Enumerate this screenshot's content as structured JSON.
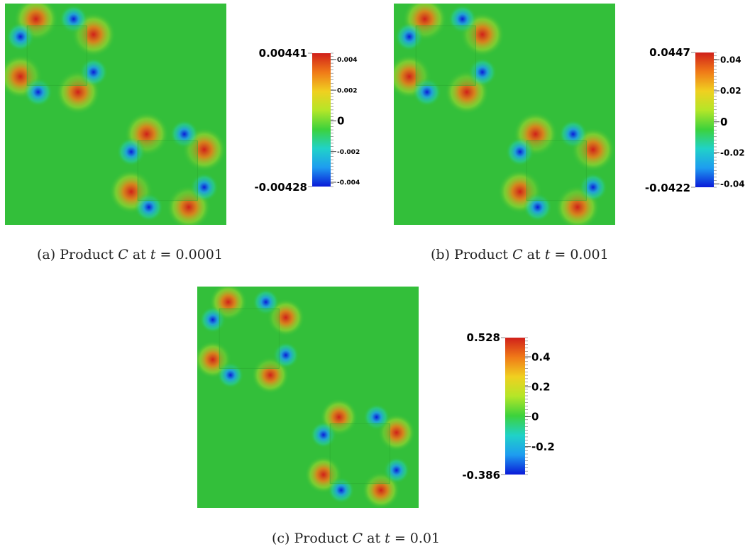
{
  "figure": {
    "panels": [
      {
        "id": "a",
        "caption": {
          "label": "(a)",
          "text": "Product",
          "var": "C",
          "at": "at",
          "tvar": "t",
          "value": "0.0001"
        },
        "colorbar": {
          "max_label": "0.00441",
          "min_label": "-0.00428",
          "range": [
            -0.00428,
            0.00441
          ],
          "ticks": [
            {
              "value": 0.004,
              "label": "0.004"
            },
            {
              "value": 0.002,
              "label": "0.002"
            },
            {
              "value": 0,
              "label": "0"
            },
            {
              "value": -0.002,
              "label": "-0.002"
            },
            {
              "value": -0.004,
              "label": "-0.004"
            }
          ]
        }
      },
      {
        "id": "b",
        "caption": {
          "label": "(b)",
          "text": "Product",
          "var": "C",
          "at": "at",
          "tvar": "t",
          "value": "0.001"
        },
        "colorbar": {
          "max_label": "0.0447",
          "min_label": "-0.0422",
          "range": [
            -0.0422,
            0.0447
          ],
          "ticks": [
            {
              "value": 0.04,
              "label": "0.04"
            },
            {
              "value": 0.02,
              "label": "0.02"
            },
            {
              "value": 0,
              "label": "0"
            },
            {
              "value": -0.02,
              "label": "-0.02"
            },
            {
              "value": -0.04,
              "label": "-0.04"
            }
          ]
        }
      },
      {
        "id": "c",
        "caption": {
          "label": "(c)",
          "text": "Product",
          "var": "C",
          "at": "at",
          "tvar": "t",
          "value": "0.01"
        },
        "colorbar": {
          "max_label": "0.528",
          "min_label": "-0.386",
          "range": [
            -0.386,
            0.528
          ],
          "ticks": [
            {
              "value": 0.4,
              "label": "0.4"
            },
            {
              "value": 0.2,
              "label": "0.2"
            },
            {
              "value": 0,
              "label": "0"
            },
            {
              "value": -0.2,
              "label": "-0.2"
            }
          ]
        }
      }
    ],
    "colors": {
      "background_field": "#33bf3a",
      "colormap": [
        "#0a1ad8",
        "#1e9cf0",
        "#20d2c8",
        "#3cd23c",
        "#b4e628",
        "#f0d020",
        "#f07a18",
        "#d0201a"
      ]
    }
  }
}
